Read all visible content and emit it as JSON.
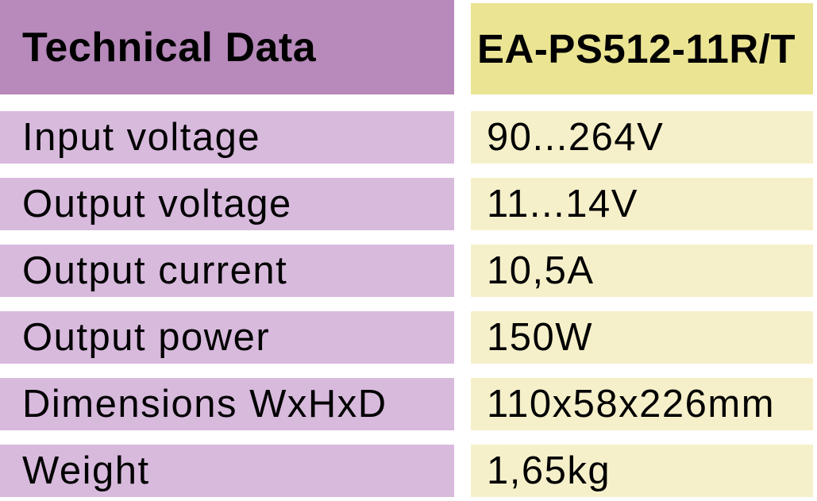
{
  "table": {
    "header": {
      "label": "Technical Data",
      "value": "EA-PS512-11R/T"
    },
    "rows": [
      {
        "label": "Input voltage",
        "value": "90...264V"
      },
      {
        "label": "Output voltage",
        "value": "11...14V"
      },
      {
        "label": "Output current",
        "value": "10,5A"
      },
      {
        "label": "Output power",
        "value": "150W"
      },
      {
        "label": "Dimensions WxHxD",
        "value": "110x58x226mm"
      },
      {
        "label": "Weight",
        "value": "1,65kg"
      }
    ],
    "colors": {
      "header_label_bg": "#b78abb",
      "header_value_bg": "#ebe493",
      "row_label_bg": "#d8badd",
      "row_value_bg": "#f6f0ca",
      "text_color": "#000000"
    }
  }
}
